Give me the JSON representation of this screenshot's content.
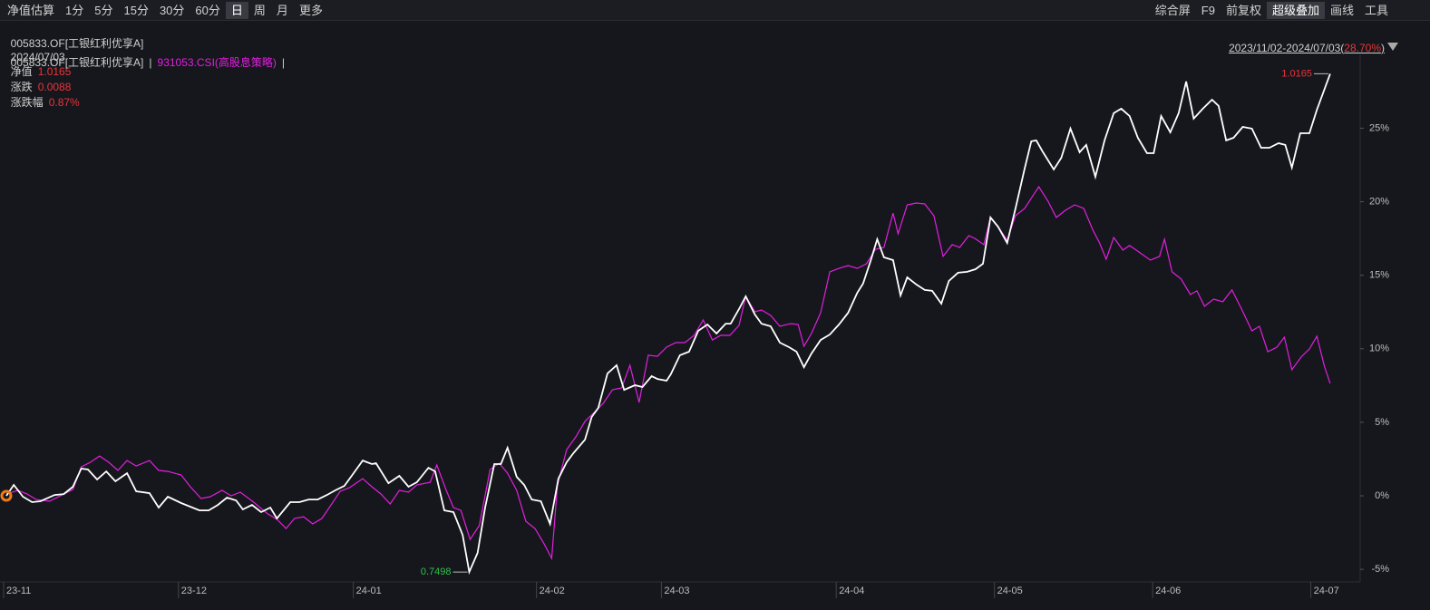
{
  "toolbar": {
    "left": [
      "净值估算",
      "1分",
      "5分",
      "15分",
      "30分",
      "60分",
      "日",
      "周",
      "月",
      "更多"
    ],
    "left_active": 6,
    "right": [
      "综合屏",
      "F9",
      "前复权",
      "超级叠加",
      "画线",
      "工具"
    ],
    "right_active": 3
  },
  "info": {
    "code": "005833.OF[工银红利优享A]",
    "date": "2024/07/03",
    "nav_label": "净值",
    "nav": "1.0165",
    "change_label": "涨跌",
    "change": "0.0088",
    "pct_label": "涨跌幅",
    "pct": "0.87%"
  },
  "legend_separator": "|",
  "range": {
    "text": "2023/11/02-2024/07/03(",
    "value": "28.70%",
    "close": ")"
  },
  "chart_data": {
    "type": "line",
    "series": [
      {
        "name": "005833.OF[工银红利优享A]",
        "color": "#ffffff",
        "x": [
          0,
          0.9,
          2.0,
          3.1,
          4.1,
          5.8,
          6.9,
          8.0,
          9.0,
          9.8,
          10.9,
          12.0,
          13.1,
          14.5,
          15.6,
          17.2,
          18.3,
          19.4,
          21.0,
          23.2,
          24.3,
          25.4,
          26.5,
          27.6,
          28.4,
          29.5,
          30.6,
          31.7,
          32.5,
          34.1,
          35.2,
          36.3,
          37.4,
          38.5,
          39.5,
          40.6,
          41.7,
          42.8,
          43.9,
          44.4,
          45.9,
          47.2,
          48.3,
          49.3,
          50.7,
          51.5,
          52.6,
          53.7,
          54.8,
          55.6,
          56.6,
          57.5,
          58.6,
          59.4,
          60.2,
          61.3,
          62.2,
          63.1,
          64.2,
          65.3,
          66.3,
          67.3,
          68.1,
          69.5,
          70.3,
          71.1,
          72.2,
          73.3,
          74.2,
          75.5,
          76.4,
          77.5,
          78.2,
          79.3,
          79.8,
          80.9,
          82.0,
          83.1,
          84.2,
          85.3,
          86.4,
          87.0,
          88.0,
          88.8,
          89.9,
          90.7,
          91.8,
          92.9,
          94.0,
          94.9,
          95.8,
          96.7,
          97.8,
          98.9,
          100.0,
          101.1,
          102.2,
          102.9,
          103.8,
          104.6,
          105.4,
          106.5,
          107.4,
          108.2,
          109.3,
          110.3,
          111.2,
          112.3,
          113.2,
          114.3,
          115.4,
          116.4,
          117.3,
          118.2,
          119.1,
          120.2,
          121.2,
          122.3,
          123.1,
          123.7,
          124.5,
          125.8,
          126.7,
          127.8,
          128.9,
          129.7,
          130.8,
          131.9,
          133.0,
          133.9,
          134.9,
          135.9,
          137.0,
          137.8,
          138.7,
          139.8,
          140.8,
          141.7,
          142.6,
          143.7,
          144.8,
          145.6,
          146.5,
          147.4,
          148.5,
          149.6,
          150.7,
          151.7,
          152.8,
          153.6,
          154.4,
          155.4,
          156.5,
          157.4,
          159.0
        ],
        "values": [
          0,
          0.74,
          -0.06,
          -0.43,
          -0.37,
          0.06,
          0.12,
          0.62,
          1.85,
          1.79,
          1.11,
          1.66,
          0.99,
          1.54,
          0.31,
          0.18,
          -0.8,
          -0.06,
          -0.49,
          -0.99,
          -0.99,
          -0.62,
          -0.12,
          -0.31,
          -0.92,
          -0.62,
          -1.11,
          -0.8,
          -1.54,
          -0.43,
          -0.43,
          -0.25,
          -0.25,
          0.06,
          0.37,
          0.68,
          1.54,
          2.4,
          2.16,
          2.22,
          0.86,
          1.36,
          0.62,
          0.92,
          1.91,
          1.66,
          -0.99,
          -1.11,
          -2.66,
          -5.18,
          -3.88,
          -0.8,
          2.16,
          2.16,
          3.27,
          1.29,
          0.74,
          -0.25,
          -0.37,
          -1.91,
          1.17,
          2.28,
          2.9,
          3.82,
          5.36,
          5.98,
          8.32,
          8.88,
          7.21,
          7.52,
          7.4,
          8.14,
          7.95,
          7.83,
          8.26,
          9.56,
          9.8,
          11.22,
          11.65,
          11.04,
          11.71,
          11.71,
          12.7,
          13.56,
          12.33,
          11.71,
          11.53,
          10.42,
          10.11,
          9.8,
          8.75,
          9.68,
          10.6,
          10.97,
          11.65,
          12.45,
          13.81,
          14.43,
          15.97,
          17.45,
          16.22,
          16.03,
          13.63,
          14.86,
          14.37,
          14.0,
          13.94,
          13.07,
          14.61,
          15.17,
          15.23,
          15.41,
          15.78,
          18.93,
          18.31,
          17.2,
          19.54,
          22.26,
          24.11,
          24.17,
          23.37,
          22.19,
          22.99,
          24.97,
          23.37,
          23.86,
          21.7,
          24.17,
          26.02,
          26.33,
          25.83,
          24.35,
          23.3,
          23.3,
          25.83,
          24.72,
          26.02,
          28.18,
          25.65,
          26.33,
          26.94,
          26.51,
          24.17,
          24.35,
          25.09,
          24.97,
          23.67,
          23.67,
          23.98,
          23.86,
          22.32,
          24.66,
          24.66,
          26.26,
          28.7
        ]
      },
      {
        "name": "931053.CSI(高股息策略)",
        "color": "#e21fe0",
        "x": [
          0,
          1.4,
          2.5,
          3.6,
          5.2,
          6.9,
          8.0,
          9.0,
          10.1,
          11.2,
          12.3,
          13.4,
          14.5,
          15.6,
          17.2,
          18.3,
          19.4,
          21.0,
          22.1,
          23.4,
          24.5,
          25.9,
          27.0,
          28.1,
          29.7,
          31.4,
          32.5,
          33.6,
          34.6,
          35.7,
          36.8,
          37.9,
          39.0,
          40.1,
          41.2,
          42.8,
          43.9,
          45.0,
          46.1,
          47.2,
          48.3,
          49.3,
          50.9,
          51.7,
          52.8,
          53.7,
          54.6,
          55.7,
          56.8,
          58.1,
          59.2,
          60.2,
          61.3,
          62.4,
          63.5,
          64.6,
          65.5,
          66.2,
          67.3,
          68.4,
          69.5,
          70.6,
          71.7,
          72.8,
          73.9,
          74.9,
          76.0,
          77.1,
          78.2,
          79.3,
          80.4,
          81.5,
          82.6,
          83.7,
          84.8,
          85.8,
          86.9,
          88.0,
          88.8,
          89.9,
          90.7,
          91.8,
          92.9,
          94.2,
          95.1,
          95.8,
          96.7,
          97.8,
          98.9,
          100.0,
          101.1,
          102.2,
          103.3,
          104.4,
          105.4,
          106.5,
          107.1,
          108.2,
          109.3,
          110.3,
          111.4,
          112.5,
          113.6,
          114.5,
          115.6,
          116.3,
          117.4,
          118.2,
          119.1,
          120.2,
          121.2,
          122.3,
          124.0,
          125.1,
          126.1,
          127.2,
          128.3,
          129.4,
          130.5,
          131.3,
          132.1,
          133.0,
          134.1,
          134.9,
          136.0,
          137.4,
          138.5,
          139.1,
          140.0,
          141.1,
          142.2,
          143.0,
          143.9,
          145.0,
          146.1,
          147.2,
          148.3,
          149.6,
          150.5,
          151.5,
          152.6,
          153.5,
          154.4,
          155.5,
          156.5,
          157.4,
          158.3,
          159.0
        ],
        "values": [
          0.12,
          0.37,
          0.12,
          -0.25,
          -0.37,
          0.12,
          0.43,
          1.97,
          2.28,
          2.71,
          2.28,
          1.73,
          2.4,
          2.03,
          2.4,
          1.73,
          1.66,
          1.42,
          0.62,
          -0.18,
          -0.06,
          0.37,
          0,
          0.25,
          -0.43,
          -1.23,
          -1.6,
          -2.22,
          -1.54,
          -1.42,
          -1.91,
          -1.54,
          -0.62,
          0.31,
          0.55,
          1.17,
          0.62,
          0.12,
          -0.55,
          0.37,
          0.25,
          0.74,
          0.92,
          2.1,
          0.43,
          -0.8,
          -0.99,
          -2.96,
          -2.03,
          1.79,
          2.22,
          1.54,
          0.37,
          -1.73,
          -2.22,
          -3.27,
          -4.25,
          0.74,
          3.14,
          4.01,
          5.06,
          5.67,
          6.29,
          7.21,
          7.34,
          8.88,
          6.35,
          9.56,
          9.49,
          10.11,
          10.42,
          10.42,
          10.91,
          11.96,
          10.6,
          10.91,
          10.91,
          11.59,
          13.56,
          12.52,
          12.64,
          12.27,
          11.53,
          11.71,
          11.65,
          10.17,
          11.04,
          12.45,
          15.23,
          15.47,
          15.66,
          15.47,
          15.78,
          16.77,
          16.89,
          19.23,
          17.82,
          19.79,
          19.91,
          19.85,
          19.05,
          16.28,
          17.08,
          16.89,
          17.69,
          17.51,
          17.08,
          18.93,
          18.31,
          17.39,
          19.05,
          19.54,
          21.02,
          20.04,
          18.93,
          19.42,
          19.79,
          19.54,
          18.06,
          17.2,
          16.09,
          17.57,
          16.71,
          17.02,
          16.59,
          16.03,
          16.28,
          17.45,
          15.23,
          14.74,
          13.69,
          13.94,
          12.89,
          13.38,
          13.2,
          14.0,
          12.77,
          11.22,
          11.53,
          9.8,
          10.11,
          10.79,
          8.57,
          9.43,
          9.99,
          10.85,
          8.82,
          7.64
        ]
      }
    ],
    "xlim": [
      -0.76,
      162.6
    ],
    "xticks": [
      {
        "value": 0,
        "label": "23-11"
      },
      {
        "value": 21,
        "label": "23-12"
      },
      {
        "value": 42,
        "label": "24-01"
      },
      {
        "value": 64,
        "label": "24-02"
      },
      {
        "value": 79,
        "label": "24-03"
      },
      {
        "value": 100,
        "label": "24-04"
      },
      {
        "value": 119,
        "label": "24-05"
      },
      {
        "value": 138,
        "label": "24-06"
      },
      {
        "value": 157,
        "label": "24-07"
      }
    ],
    "ylim": [
      -5.73,
      30.02
    ],
    "yticks": [
      {
        "value": -5,
        "label": "-5%"
      },
      {
        "value": 0,
        "label": "0%"
      },
      {
        "value": 5,
        "label": "5%"
      },
      {
        "value": 10,
        "label": "10%"
      },
      {
        "value": 15,
        "label": "15%"
      },
      {
        "value": 20,
        "label": "20%"
      },
      {
        "value": 25,
        "label": "25%"
      }
    ],
    "annotations": [
      {
        "text": "1.0165",
        "color": "#e8343a"
      },
      {
        "text": "0.7498",
        "color": "#2fc24a"
      }
    ]
  }
}
